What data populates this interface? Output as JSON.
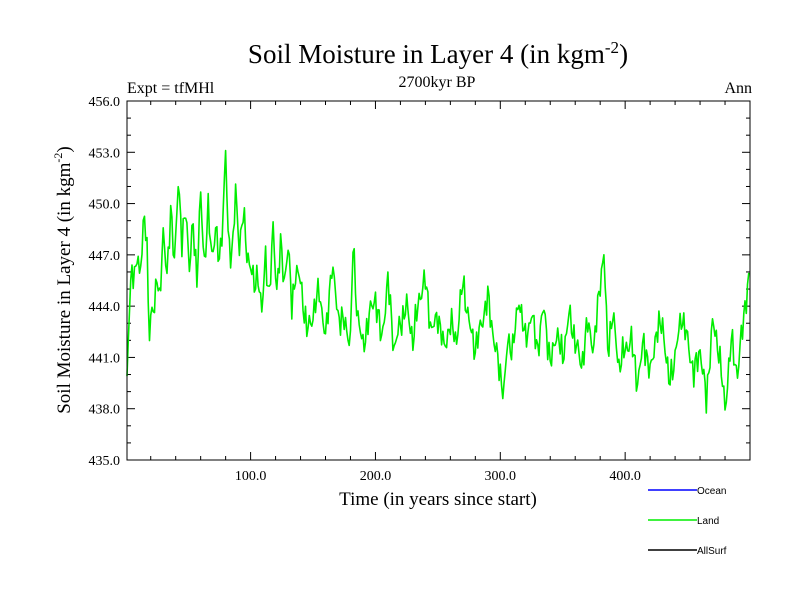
{
  "chart_data": {
    "type": "line",
    "title_main": "Soil Moisture in Layer 4 (in kgm",
    "title_sup": "-2",
    "title_close": ")",
    "left_label": "Expt = tfMHl",
    "center_label": "2700kyr BP",
    "right_label": "Ann",
    "xlabel": "Time (in years since start)",
    "ylabel_main": "Soil Moisture in Layer 4 (in kgm",
    "ylabel_sup": "-2",
    "ylabel_close": ")",
    "xlim": [
      1,
      500
    ],
    "ylim": [
      435.0,
      456.0
    ],
    "xticks": [
      100,
      200,
      300,
      400
    ],
    "xtick_labels": [
      "100.0",
      "200.0",
      "300.0",
      "400.0"
    ],
    "yticks": [
      435,
      438,
      441,
      444,
      447,
      450,
      453,
      456
    ],
    "ytick_labels": [
      "435.0",
      "438.0",
      "441.0",
      "444.0",
      "447.0",
      "450.0",
      "453.0",
      "456.0"
    ],
    "legend": [
      {
        "name": "Ocean",
        "color": "#0000ff"
      },
      {
        "name": "Land",
        "color": "#00ee00"
      },
      {
        "name": "AllSurf",
        "color": "#000000"
      }
    ],
    "series": [
      {
        "name": "Land",
        "color": "#00ee00",
        "x": [
          1,
          3,
          5,
          7,
          9,
          11,
          13,
          15,
          17,
          19,
          21,
          23,
          25,
          27,
          30,
          33,
          36,
          39,
          42,
          45,
          48,
          51,
          54,
          57,
          60,
          63,
          66,
          69,
          72,
          75,
          78,
          80,
          82,
          85,
          88,
          91,
          94,
          97,
          100,
          103,
          106,
          109,
          112,
          115,
          118,
          121,
          124,
          127,
          130,
          133,
          136,
          140,
          145,
          150,
          155,
          160,
          165,
          170,
          175,
          180,
          182,
          185,
          190,
          195,
          200,
          205,
          210,
          215,
          220,
          225,
          230,
          235,
          240,
          245,
          250,
          255,
          260,
          265,
          270,
          275,
          280,
          285,
          290,
          295,
          300,
          303,
          306,
          310,
          315,
          320,
          325,
          330,
          335,
          340,
          345,
          350,
          355,
          360,
          365,
          370,
          375,
          380,
          383,
          386,
          390,
          395,
          400,
          405,
          410,
          415,
          420,
          425,
          430,
          435,
          440,
          445,
          450,
          455,
          460,
          465,
          470,
          475,
          480,
          485,
          490,
          495,
          499
        ],
        "values": [
          439.5,
          444.0,
          446.5,
          445.5,
          446.8,
          446.0,
          447.5,
          449.3,
          447.0,
          442.5,
          444.0,
          443.5,
          446.0,
          444.5,
          448.0,
          446.0,
          449.5,
          446.5,
          451.5,
          447.5,
          450.0,
          446.0,
          449.0,
          445.5,
          450.5,
          446.5,
          449.5,
          447.0,
          448.5,
          446.5,
          449.5,
          453.0,
          448.0,
          447.0,
          450.5,
          447.5,
          449.5,
          447.0,
          446.5,
          445.0,
          446.0,
          443.5,
          447.0,
          444.5,
          448.5,
          445.0,
          447.5,
          445.5,
          447.5,
          444.0,
          446.0,
          445.5,
          442.5,
          443.5,
          445.0,
          442.0,
          446.5,
          443.5,
          443.0,
          442.0,
          447.5,
          444.0,
          441.5,
          443.5,
          444.5,
          442.0,
          445.5,
          441.5,
          443.0,
          444.0,
          442.0,
          444.5,
          445.5,
          442.5,
          443.5,
          441.5,
          443.0,
          442.0,
          445.5,
          443.0,
          441.5,
          443.0,
          444.5,
          442.0,
          440.0,
          439.0,
          442.0,
          441.5,
          444.5,
          442.0,
          443.5,
          441.5,
          444.0,
          440.5,
          442.5,
          441.0,
          443.5,
          442.0,
          440.5,
          443.0,
          441.5,
          445.5,
          447.0,
          441.5,
          443.5,
          440.5,
          441.5,
          442.0,
          439.5,
          442.0,
          440.0,
          442.5,
          443.0,
          439.5,
          441.0,
          443.5,
          442.0,
          440.0,
          441.5,
          438.5,
          443.0,
          441.5,
          438.0,
          442.0,
          440.0,
          443.5,
          445.5
        ]
      }
    ]
  }
}
